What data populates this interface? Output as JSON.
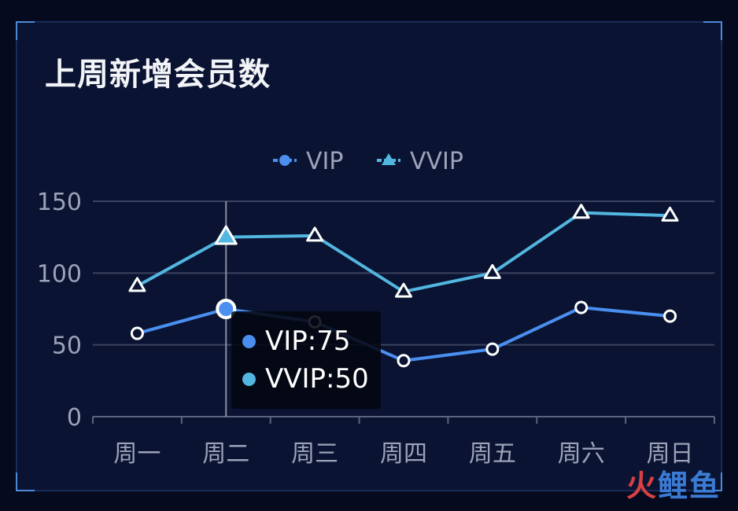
{
  "panel": {
    "title": "上周新增会员数"
  },
  "tooltip": {
    "rows": [
      {
        "label": "VIP:75",
        "color": "#4a8ff0"
      },
      {
        "label": "VVIP:50",
        "color": "#52b6e0"
      }
    ]
  },
  "watermark": {
    "fire": "火",
    "rest": "鲤鱼"
  },
  "chart_data": {
    "type": "line",
    "categories": [
      "周一",
      "周二",
      "周三",
      "周四",
      "周五",
      "周六",
      "周日"
    ],
    "series": [
      {
        "name": "VIP",
        "values": [
          58,
          75,
          66,
          39,
          47,
          76,
          70
        ],
        "color": "#4a8ff0",
        "marker": "circle"
      },
      {
        "name": "VVIP",
        "values": [
          91,
          125,
          126,
          87,
          100,
          142,
          140
        ],
        "color": "#52b6e0",
        "marker": "triangle"
      }
    ],
    "y_ticks": [
      0,
      50,
      100,
      150
    ],
    "ylim": [
      0,
      150
    ],
    "highlighted_category": "周二",
    "grid": true,
    "legend_placement": "top-center"
  }
}
